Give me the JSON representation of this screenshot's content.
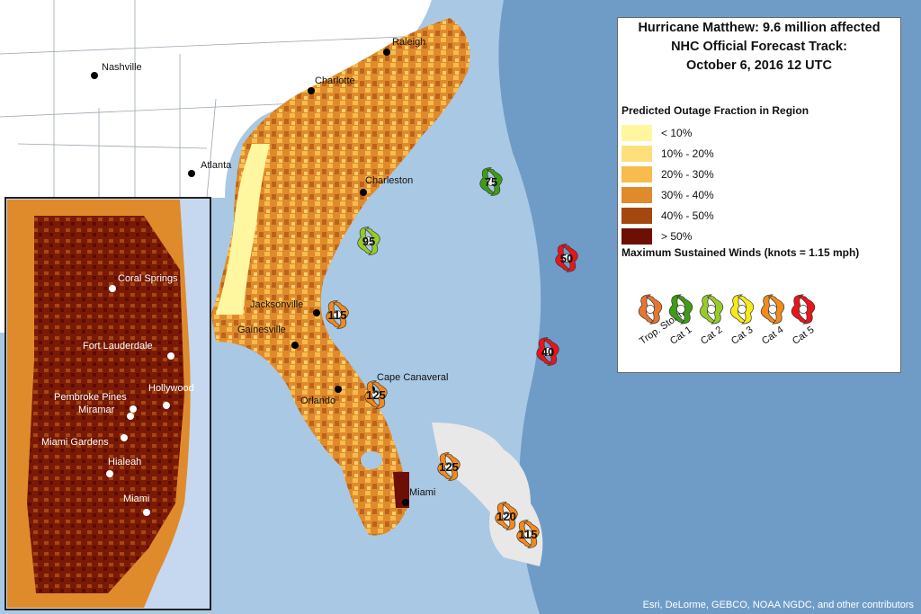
{
  "title": {
    "line1": "Hurricane Matthew: 9.6 million affected",
    "line2": "NHC Official Forecast Track:",
    "line3": "October 6, 2016 12 UTC"
  },
  "outage_legend": {
    "heading": "Predicted Outage Fraction in Region",
    "classes": [
      {
        "label": "< 10%",
        "color": "#fef7a0"
      },
      {
        "label": "10% - 20%",
        "color": "#fde07b"
      },
      {
        "label": "20% - 30%",
        "color": "#f8bb4d"
      },
      {
        "label": "30% - 40%",
        "color": "#df8b2c"
      },
      {
        "label": "40% - 50%",
        "color": "#a5480f"
      },
      {
        "label": "> 50%",
        "color": "#6e0f05"
      }
    ]
  },
  "wind_legend": {
    "heading": "Maximum Sustained Winds (knots = 1.15 mph)",
    "categories": [
      {
        "label": "Trop. Storm",
        "color": "#e9742f"
      },
      {
        "label": "Cat 1",
        "color": "#3f9c16"
      },
      {
        "label": "Cat 2",
        "color": "#96cc29"
      },
      {
        "label": "Cat 3",
        "color": "#f6ea1a"
      },
      {
        "label": "Cat 4",
        "color": "#f38a19"
      },
      {
        "label": "Cat 5",
        "color": "#e8151a"
      }
    ]
  },
  "cities": [
    {
      "name": "Nashville"
    },
    {
      "name": "Raleigh"
    },
    {
      "name": "Charlotte"
    },
    {
      "name": "Atlanta"
    },
    {
      "name": "Charleston"
    },
    {
      "name": "Jacksonville"
    },
    {
      "name": "Gainesville"
    },
    {
      "name": "Cape Canaveral"
    },
    {
      "name": "Orlando"
    },
    {
      "name": "Miami"
    }
  ],
  "storm_track": [
    {
      "wind": "75",
      "color": "#3f9c16"
    },
    {
      "wind": "95",
      "color": "#96cc29"
    },
    {
      "wind": "50",
      "color": "#e8151a"
    },
    {
      "wind": "115",
      "color": "#f38a19"
    },
    {
      "wind": "40",
      "color": "#e8151a"
    },
    {
      "wind": "125",
      "color": "#f38a19"
    },
    {
      "wind": "125",
      "color": "#f38a19"
    },
    {
      "wind": "120",
      "color": "#f38a19"
    },
    {
      "wind": "115",
      "color": "#f38a19"
    }
  ],
  "inset_cities": [
    {
      "name": "Coral Springs"
    },
    {
      "name": "Fort Lauderdale"
    },
    {
      "name": "Hollywood"
    },
    {
      "name": "Pembroke Pines"
    },
    {
      "name": "Miramar"
    },
    {
      "name": "Miami Gardens"
    },
    {
      "name": "Hialeah"
    },
    {
      "name": "Miami"
    }
  ],
  "credits": "Esri, DeLorme, GEBCO, NOAA NGDC, and other contributors"
}
